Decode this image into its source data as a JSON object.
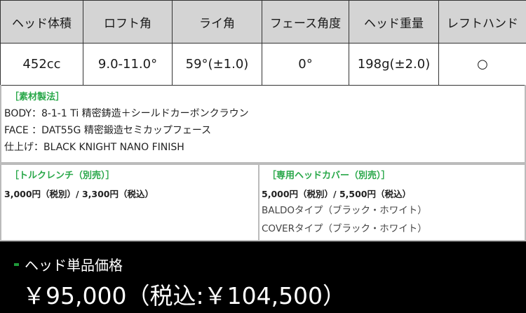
{
  "spec_table": {
    "headers": [
      "ヘッド体積",
      "ロフト角",
      "ライ角",
      "フェース角度",
      "ヘッド重量",
      "レフトハンド"
    ],
    "values": [
      "452cc",
      "9.0-11.0°",
      "59°(±1.0)",
      "0°",
      "198g(±2.0)",
      "○"
    ]
  },
  "materials": {
    "title": "［素材製法］",
    "lines": [
      "BODY：8-1-1 Ti 精密鋳造＋シールドカーボンクラウン",
      "FACE ：DAT55G 精密鍛造セミカップフェース",
      "仕上げ：BLACK KNIGHT NANO FINISH"
    ]
  },
  "torque_wrench": {
    "title": "［トルクレンチ（別売）］",
    "price": "3,000円（税別）/ 3,300円（税込）"
  },
  "head_cover": {
    "title": "［専用ヘッドカバー（別売）］",
    "price": "5,000円（税別）/ 5,500円（税込）",
    "types": [
      "BALDOタイプ（ブラック・ホワイト）",
      "COVERタイプ（ブラック・ホワイト）"
    ]
  },
  "head_price": {
    "label": "ヘッド単品価格",
    "amount": "￥95,000（税込:￥104,500）"
  },
  "colors": {
    "accent": "#2aa84a",
    "header_bg": "#d4d4d4",
    "price_bg": "#000000"
  }
}
